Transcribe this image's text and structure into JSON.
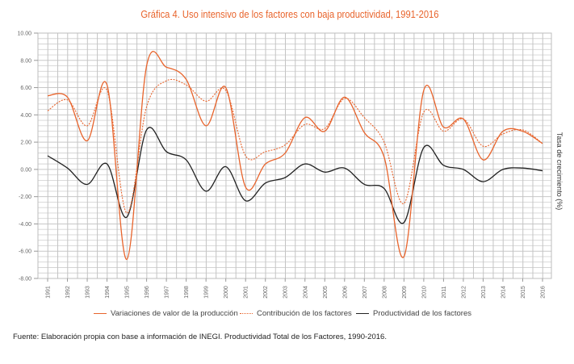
{
  "chart_data": {
    "type": "line",
    "title": "Gráfica 4. Uso intensivo de los factores con baja productividad, 1991-2016",
    "xlabel": "",
    "ylabel": "Tasa de crecimiento (%)",
    "ylim": [
      -8,
      10
    ],
    "yticks": [
      "10.00",
      "8.00",
      "6.00",
      "4.00",
      "2.00",
      "0.00",
      "-2.00",
      "-4.00",
      "-6.00",
      "-8.00"
    ],
    "ytick_values": [
      10,
      8,
      6,
      4,
      2,
      0,
      -2,
      -4,
      -6,
      -8
    ],
    "grid": true,
    "legend_position": "bottom",
    "categories": [
      "1991",
      "1992",
      "1993",
      "1994",
      "1995",
      "1996",
      "1997",
      "1998",
      "1999",
      "2000",
      "2001",
      "2002",
      "2003",
      "2004",
      "2005",
      "2006",
      "2007",
      "2008",
      "2009",
      "2010",
      "2011",
      "2012",
      "2013",
      "2014",
      "2015",
      "2016"
    ],
    "series": [
      {
        "name": "Variaciones de valor de la producción",
        "color": "#e8642c",
        "style": "solid",
        "values": [
          5.4,
          5.3,
          2.1,
          6.2,
          -6.6,
          7.6,
          7.5,
          6.6,
          3.2,
          6.0,
          -1.3,
          0.4,
          1.2,
          3.8,
          2.8,
          5.3,
          2.7,
          0.9,
          -6.4,
          5.8,
          3.1,
          3.7,
          0.7,
          2.8,
          2.8,
          1.9
        ]
      },
      {
        "name": "Contribución de los factores",
        "color": "#e8642c",
        "style": "dashed",
        "values": [
          4.3,
          5.1,
          3.2,
          5.8,
          -3.2,
          4.6,
          6.5,
          6.2,
          5.0,
          5.8,
          1.0,
          1.3,
          1.8,
          3.3,
          3.0,
          5.2,
          3.8,
          2.0,
          -2.5,
          4.2,
          2.8,
          3.7,
          1.7,
          2.6,
          2.9,
          1.9
        ]
      },
      {
        "name": "Productividad de los factores",
        "color": "#222222",
        "style": "solid",
        "values": [
          1.0,
          0.1,
          -1.1,
          0.4,
          -3.5,
          2.9,
          1.3,
          0.7,
          -1.6,
          0.2,
          -2.3,
          -1.0,
          -0.6,
          0.4,
          -0.2,
          0.1,
          -1.1,
          -1.4,
          -3.9,
          1.6,
          0.3,
          0.0,
          -0.9,
          0.0,
          0.1,
          -0.1
        ]
      }
    ],
    "source": "Fuente: Elaboración propia con base a información de INEGI. Productividad Total de los Factores, 1990-2016."
  }
}
